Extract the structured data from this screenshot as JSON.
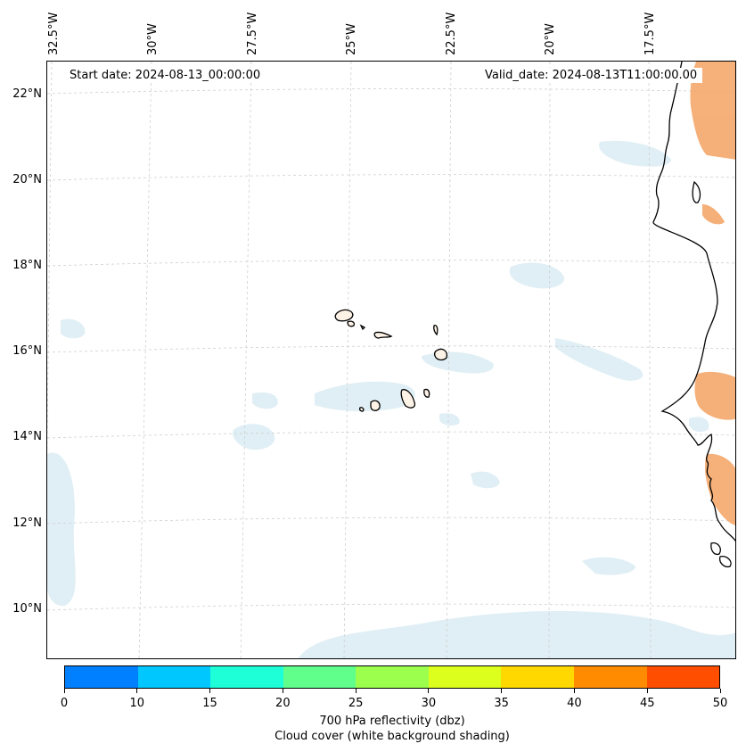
{
  "map": {
    "start_date": "Start date: 2024-08-13_00:00:00",
    "valid_date": "Valid_date: 2024-08-13T11:00:00.00",
    "lon_labels": [
      "32.5°W",
      "30°W",
      "27.5°W",
      "25°W",
      "22.5°W",
      "20°W",
      "17.5°W"
    ],
    "lat_labels": [
      "22°N",
      "20°N",
      "18°N",
      "16°N",
      "14°N",
      "12°N",
      "10°N"
    ],
    "land_fill_color": "#f4a261",
    "cloud_color": "#d6eaf2"
  },
  "colorbar": {
    "colors": [
      "#0080ff",
      "#00c8ff",
      "#1effd8",
      "#60ff8c",
      "#9cff4e",
      "#dcff1e",
      "#ffd800",
      "#ff8c00",
      "#ff4e00"
    ],
    "tick_labels": [
      "0",
      "10",
      "15",
      "20",
      "25",
      "30",
      "35",
      "40",
      "45",
      "50"
    ],
    "caption_line1": "700 hPa reflectivity (dbz)",
    "caption_line2": "Cloud cover (white background shading)"
  }
}
